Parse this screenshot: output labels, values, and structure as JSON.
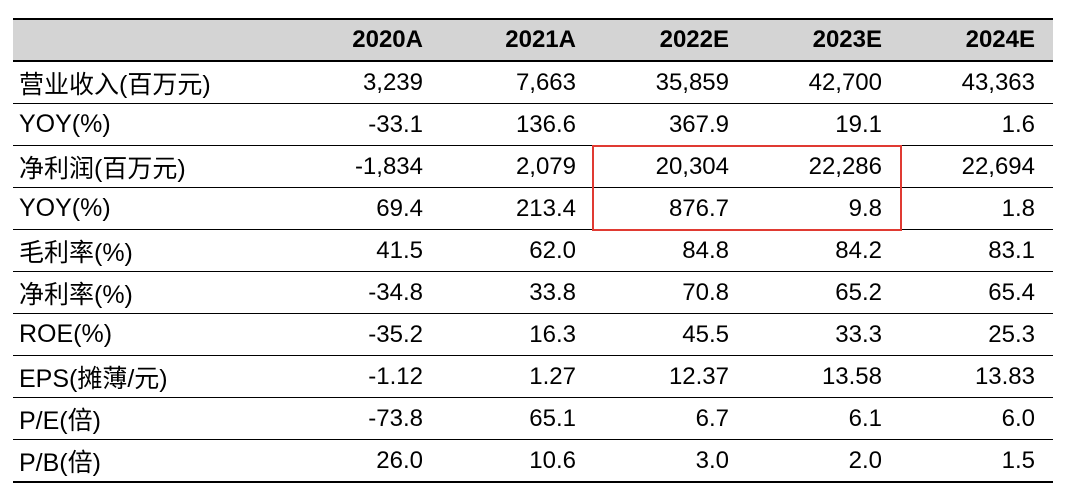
{
  "chart_data": {
    "type": "table",
    "columns": [
      "",
      "2020A",
      "2021A",
      "2022E",
      "2023E",
      "2024E"
    ],
    "rows": [
      {
        "label": "营业收入(百万元)",
        "values": [
          "3,239",
          "7,663",
          "35,859",
          "42,700",
          "43,363"
        ]
      },
      {
        "label": "YOY(%)",
        "values": [
          "-33.1",
          "136.6",
          "367.9",
          "19.1",
          "1.6"
        ]
      },
      {
        "label": "净利润(百万元)",
        "values": [
          "-1,834",
          "2,079",
          "20,304",
          "22,286",
          "22,694"
        ]
      },
      {
        "label": "YOY(%)",
        "values": [
          "69.4",
          "213.4",
          "876.7",
          "9.8",
          "1.8"
        ]
      },
      {
        "label": "毛利率(%)",
        "values": [
          "41.5",
          "62.0",
          "84.8",
          "84.2",
          "83.1"
        ]
      },
      {
        "label": "净利率(%)",
        "values": [
          "-34.8",
          "33.8",
          "70.8",
          "65.2",
          "65.4"
        ]
      },
      {
        "label": "ROE(%)",
        "values": [
          "-35.2",
          "16.3",
          "45.5",
          "33.3",
          "25.3"
        ]
      },
      {
        "label": "EPS(摊薄/元)",
        "values": [
          "-1.12",
          "1.27",
          "12.37",
          "13.58",
          "13.83"
        ]
      },
      {
        "label": "P/E(倍)",
        "values": [
          "-73.8",
          "65.1",
          "6.7",
          "6.1",
          "6.0"
        ]
      },
      {
        "label": "P/B(倍)",
        "values": [
          "26.0",
          "10.6",
          "3.0",
          "2.0",
          "1.5"
        ]
      }
    ],
    "highlight": {
      "rows": [
        2,
        3
      ],
      "columns": [
        "2022E",
        "2023E"
      ],
      "color": "#e03a32"
    }
  },
  "style": {
    "header_bg": "#d4d4d4",
    "highlight_color": "#e03a32"
  }
}
